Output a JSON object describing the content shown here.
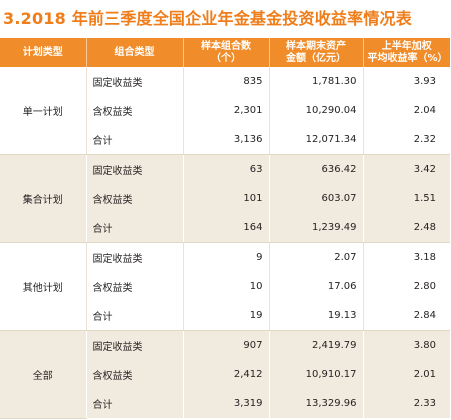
{
  "title": "3.2018 年前三季度全国企业年金基金投资收益率情况表",
  "headers": {
    "plan_type": "计划类型",
    "combo_type": "组合类型",
    "sample_count": "样本组合数\n（个）",
    "assets": "样本期末资产\n金额（亿元）",
    "return_rate": "上半年加权\n平均收益率（%）"
  },
  "groups": [
    {
      "plan": "单一计划",
      "rows": [
        {
          "type": "固定收益类",
          "count": "835",
          "assets": "1,781.30",
          "rate": "3.93"
        },
        {
          "type": "含权益类",
          "count": "2,301",
          "assets": "10,290.04",
          "rate": "2.04"
        },
        {
          "type": "合计",
          "count": "3,136",
          "assets": "12,071.34",
          "rate": "2.32"
        }
      ]
    },
    {
      "plan": "集合计划",
      "rows": [
        {
          "type": "固定收益类",
          "count": "63",
          "assets": "636.42",
          "rate": "3.42"
        },
        {
          "type": "含权益类",
          "count": "101",
          "assets": "603.07",
          "rate": "1.51"
        },
        {
          "type": "合计",
          "count": "164",
          "assets": "1,239.49",
          "rate": "2.48"
        }
      ]
    },
    {
      "plan": "其他计划",
      "rows": [
        {
          "type": "固定收益类",
          "count": "9",
          "assets": "2.07",
          "rate": "3.18"
        },
        {
          "type": "含权益类",
          "count": "10",
          "assets": "17.06",
          "rate": "2.80"
        },
        {
          "type": "合计",
          "count": "19",
          "assets": "19.13",
          "rate": "2.84"
        }
      ]
    },
    {
      "plan": "全部",
      "rows": [
        {
          "type": "固定收益类",
          "count": "907",
          "assets": "2,419.79",
          "rate": "3.80"
        },
        {
          "type": "含权益类",
          "count": "2,412",
          "assets": "10,910.17",
          "rate": "2.01"
        },
        {
          "type": "合计",
          "count": "3,319",
          "assets": "13,329.96",
          "rate": "2.33"
        }
      ]
    }
  ],
  "colors": {
    "title": "#ef7d1a",
    "header_bg": "#f08c2a",
    "band_bg": "#f1eadf"
  }
}
